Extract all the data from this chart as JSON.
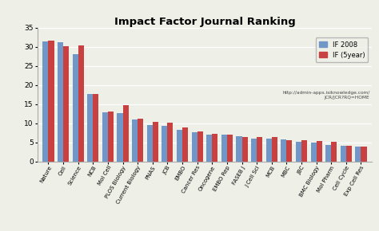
{
  "title": "Impact Factor Journal Ranking",
  "categories": [
    "Nature",
    "Cell",
    "Science",
    "NCB",
    "Mol Cell",
    "PLOS Biology",
    "Current Biology",
    "PNAS",
    "JCB",
    "EMBO",
    "Cancer Res",
    "Oncogene",
    "EMBO Rep",
    "FASEB J",
    "J Cell Sci",
    "MCB",
    "MBC",
    "JBC",
    "BMC Biology",
    "Mol Pharm",
    "Cell Cycle",
    "Exp Cell Res"
  ],
  "if2008": [
    31.4,
    31.2,
    28.1,
    17.6,
    13.0,
    12.7,
    11.0,
    9.6,
    9.3,
    8.3,
    7.6,
    7.1,
    7.0,
    6.7,
    6.1,
    6.0,
    5.9,
    5.2,
    5.0,
    4.3,
    4.1,
    4.0
  ],
  "if5year": [
    31.6,
    30.2,
    30.4,
    17.7,
    13.1,
    14.8,
    11.2,
    10.4,
    10.1,
    9.0,
    8.0,
    7.2,
    7.1,
    6.5,
    6.4,
    6.4,
    5.7,
    5.6,
    5.5,
    5.1,
    4.1,
    3.9
  ],
  "blue_color": "#7097C8",
  "red_color": "#C84040",
  "bg_color": "#EEF0E8",
  "ylim": [
    0,
    35
  ],
  "yticks": [
    0,
    5,
    10,
    15,
    20,
    25,
    30,
    35
  ],
  "legend_label1": "IF 2008",
  "legend_label2": "IF (5year)",
  "url_text": "http://admin-apps.isiknowledge.com/\nJCR/JCR?RQ=HOME"
}
